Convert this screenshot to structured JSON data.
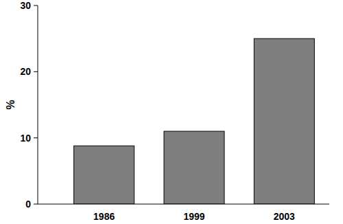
{
  "chart_data": {
    "type": "bar",
    "y_label": "%",
    "categories": [
      "1986",
      "1999",
      "2003"
    ],
    "values": [
      8.8,
      11,
      25
    ],
    "color": "#7f7f7f",
    "ylim": [
      0,
      30
    ],
    "yticks": [
      0,
      10,
      20,
      30
    ],
    "grid": false
  }
}
